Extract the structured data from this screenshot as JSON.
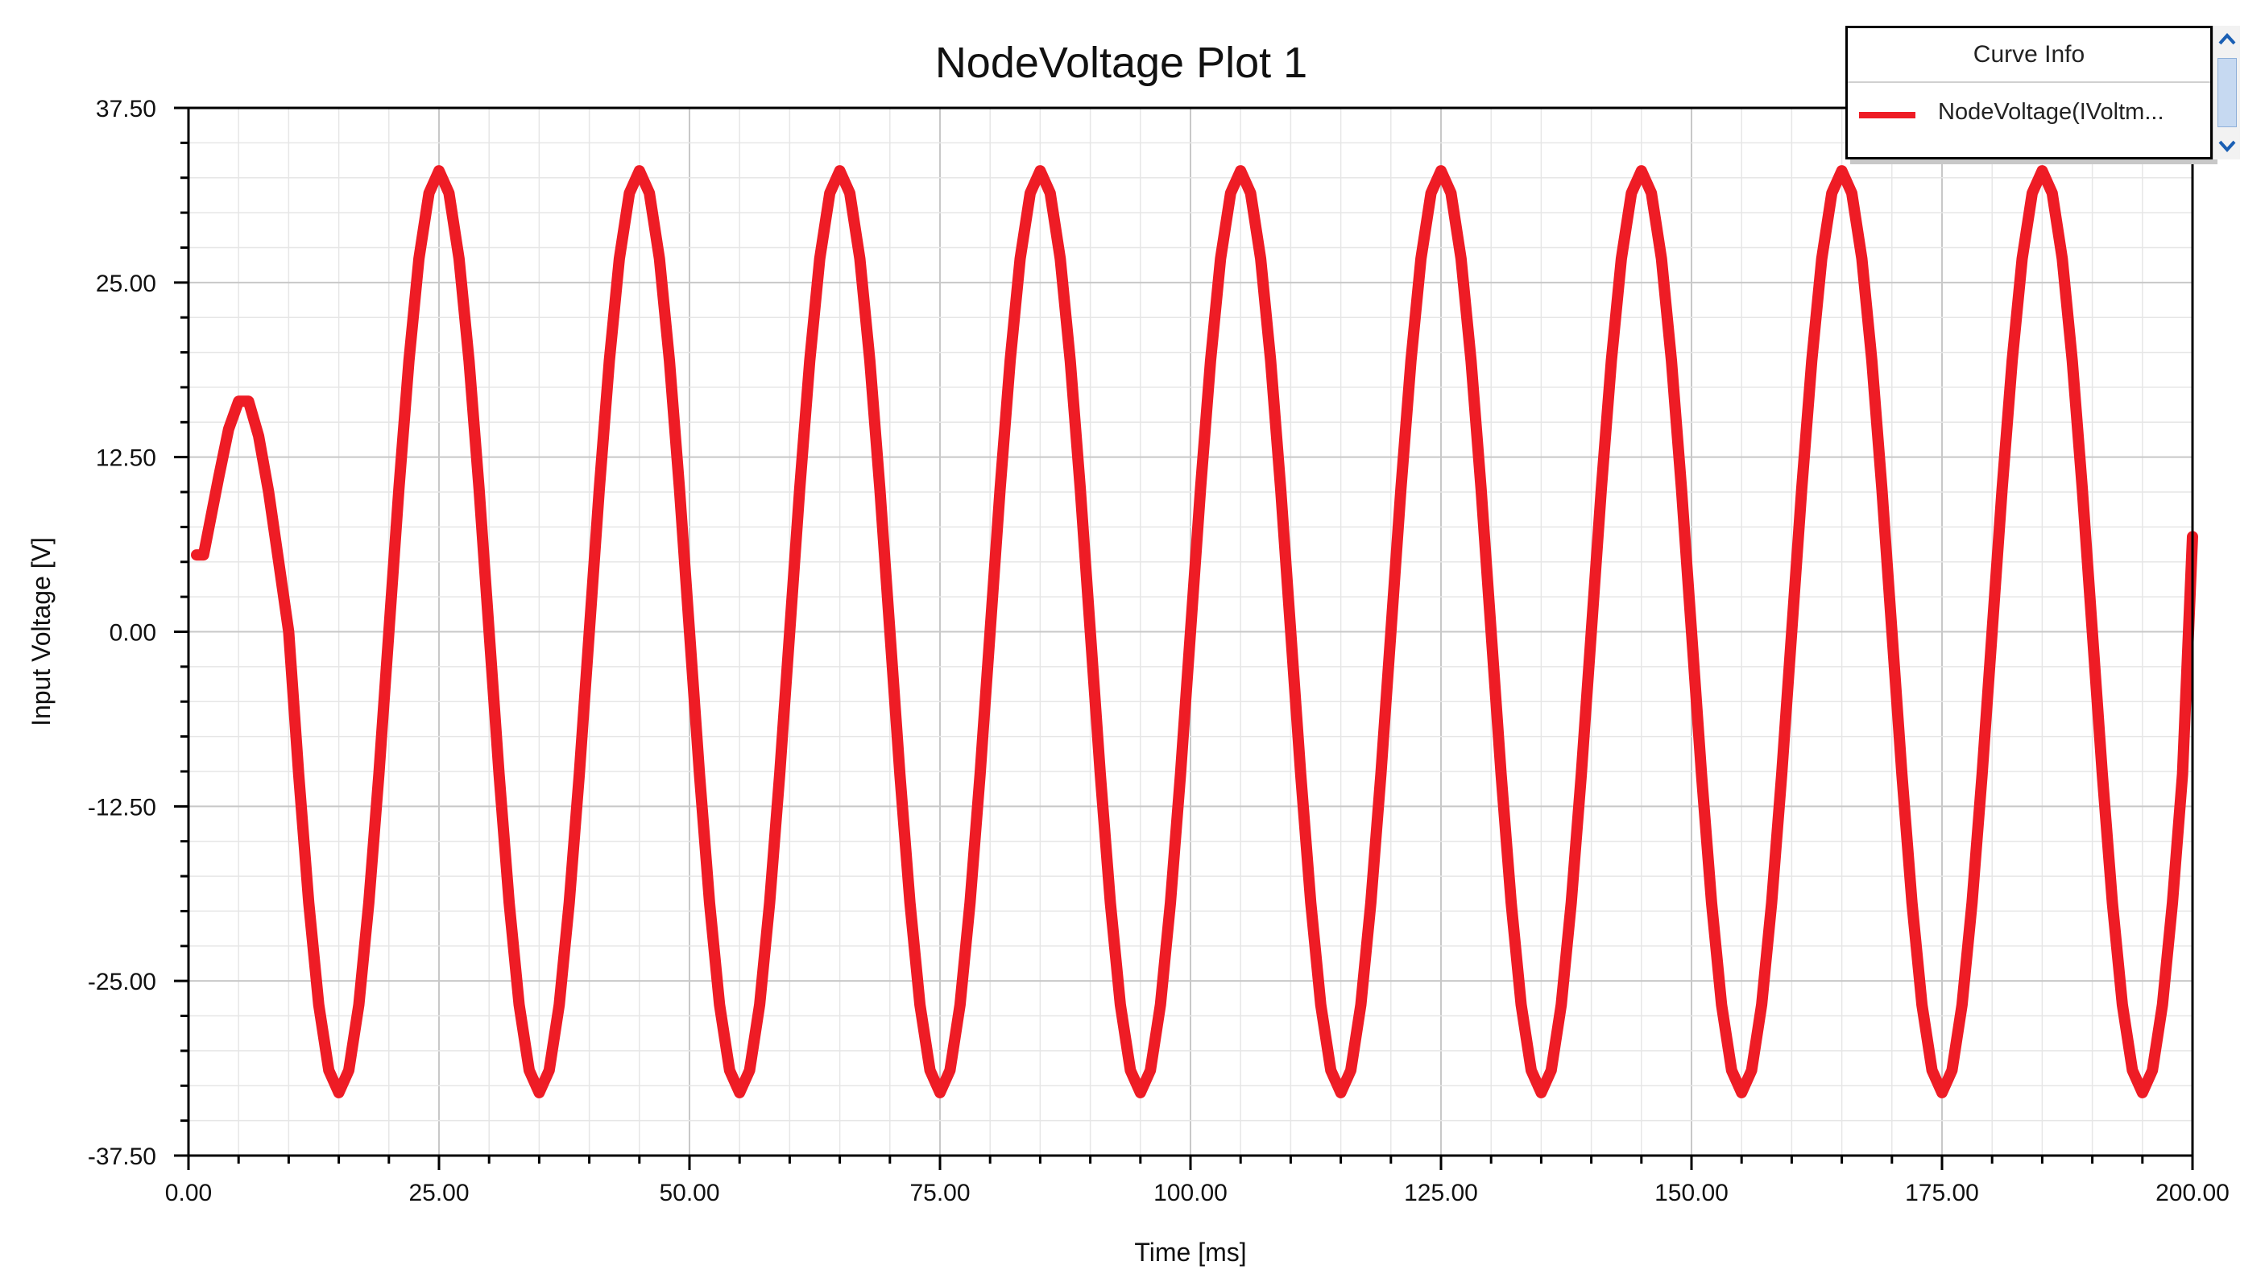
{
  "legend": {
    "header": "Curve Info",
    "items": [
      {
        "label": "NodeVoltage(IVoltm...",
        "color": "#ee1c25"
      }
    ],
    "scroll_up_icon": "chevron-up-icon",
    "scroll_down_icon": "chevron-down-icon"
  },
  "chart_data": {
    "type": "line",
    "title": "NodeVoltage Plot 1",
    "xlabel": "Time [ms]",
    "ylabel": "Input Voltage [V]",
    "xlim": [
      0,
      200
    ],
    "ylim": [
      -37.5,
      37.5
    ],
    "x_ticks": [
      "0.00",
      "25.00",
      "50.00",
      "75.00",
      "100.00",
      "125.00",
      "150.00",
      "175.00",
      "200.00"
    ],
    "y_ticks": [
      "37.50",
      "25.00",
      "12.50",
      "0.00",
      "-12.50",
      "-25.00",
      "-37.50"
    ],
    "grid": true,
    "legend_position": "top-right",
    "series": [
      {
        "name": "NodeVoltage(IVoltm...",
        "color": "#ee1c25",
        "x": [
          0.8,
          1.5,
          3,
          4,
          5,
          6,
          7,
          8,
          9,
          10,
          11,
          12,
          13,
          14,
          15,
          16,
          17,
          18,
          19,
          20,
          21,
          22,
          23,
          24,
          25,
          26,
          27,
          28,
          29,
          30,
          31,
          32,
          33,
          34,
          35,
          36,
          37,
          38,
          39,
          40,
          41,
          42,
          43,
          44,
          45,
          46,
          47,
          48,
          49,
          50,
          51,
          52,
          53,
          54,
          55,
          56,
          57,
          58,
          59,
          60,
          61,
          62,
          63,
          64,
          65,
          66,
          67,
          68,
          69,
          70,
          71,
          72,
          73,
          74,
          75,
          76,
          77,
          78,
          79,
          80,
          81,
          82,
          83,
          84,
          85,
          86,
          87,
          88,
          89,
          90,
          91,
          92,
          93,
          94,
          95,
          96,
          97,
          98,
          99,
          100,
          101,
          102,
          103,
          104,
          105,
          106,
          107,
          108,
          109,
          110,
          111,
          112,
          113,
          114,
          115,
          116,
          117,
          118,
          119,
          120,
          121,
          122,
          123,
          124,
          125,
          126,
          127,
          128,
          129,
          130,
          131,
          132,
          133,
          134,
          135,
          136,
          137,
          138,
          139,
          140,
          141,
          142,
          143,
          144,
          145,
          146,
          147,
          148,
          149,
          150,
          151,
          152,
          153,
          154,
          155,
          156,
          157,
          158,
          159,
          160,
          161,
          162,
          163,
          164,
          165,
          166,
          167,
          168,
          169,
          170,
          171,
          172,
          173,
          174,
          175,
          176,
          177,
          178,
          179,
          180,
          181,
          182,
          183,
          184,
          185,
          186,
          187,
          188,
          189,
          190,
          191,
          192,
          193,
          194,
          195,
          196,
          197,
          198,
          199,
          200
        ],
        "y": [
          5.5,
          5.5,
          11.0,
          14.5,
          16.5,
          16.5,
          14.0,
          10.0,
          5.0,
          0.0,
          -10.2,
          -19.4,
          -26.7,
          -31.4,
          -33.0,
          -31.4,
          -26.7,
          -19.4,
          -10.2,
          0.0,
          10.2,
          19.4,
          26.7,
          31.4,
          33.0,
          31.4,
          26.7,
          19.4,
          10.2,
          0.0,
          -10.2,
          -19.4,
          -26.7,
          -31.4,
          -33.0,
          -31.4,
          -26.7,
          -19.4,
          -10.2,
          0.0,
          10.2,
          19.4,
          26.7,
          31.4,
          33.0,
          31.4,
          26.7,
          19.4,
          10.2,
          0.0,
          -10.2,
          -19.4,
          -26.7,
          -31.4,
          -33.0,
          -31.4,
          -26.7,
          -19.4,
          -10.2,
          0.0,
          10.2,
          19.4,
          26.7,
          31.4,
          33.0,
          31.4,
          26.7,
          19.4,
          10.2,
          0.0,
          -10.2,
          -19.4,
          -26.7,
          -31.4,
          -33.0,
          -31.4,
          -26.7,
          -19.4,
          -10.2,
          0.0,
          10.2,
          19.4,
          26.7,
          31.4,
          33.0,
          31.4,
          26.7,
          19.4,
          10.2,
          0.0,
          -10.2,
          -19.4,
          -26.7,
          -31.4,
          -33.0,
          -31.4,
          -26.7,
          -19.4,
          -10.2,
          0.0,
          10.2,
          19.4,
          26.7,
          31.4,
          33.0,
          31.4,
          26.7,
          19.4,
          10.2,
          0.0,
          -10.2,
          -19.4,
          -26.7,
          -31.4,
          -33.0,
          -31.4,
          -26.7,
          -19.4,
          -10.2,
          0.0,
          10.2,
          19.4,
          26.7,
          31.4,
          33.0,
          31.4,
          26.7,
          19.4,
          10.2,
          0.0,
          -10.2,
          -19.4,
          -26.7,
          -31.4,
          -33.0,
          -31.4,
          -26.7,
          -19.4,
          -10.2,
          0.0,
          10.2,
          19.4,
          26.7,
          31.4,
          33.0,
          31.4,
          26.7,
          19.4,
          10.2,
          0.0,
          -10.2,
          -19.4,
          -26.7,
          -31.4,
          -33.0,
          -31.4,
          -26.7,
          -19.4,
          -10.2,
          0.0,
          10.2,
          19.4,
          26.7,
          31.4,
          33.0,
          31.4,
          26.7,
          19.4,
          10.2,
          0.0,
          -10.2,
          -19.4,
          -26.7,
          -31.4,
          -33.0,
          -31.4,
          -26.7,
          -19.4,
          -10.2,
          0.0,
          10.2,
          19.4,
          26.7,
          31.4,
          33.0,
          31.4,
          26.7,
          19.4,
          10.2,
          0.0,
          -10.2,
          -19.4,
          -26.7,
          -31.4,
          -33.0,
          -31.4,
          -26.7,
          -19.4,
          -10.2,
          6.8
        ]
      }
    ]
  }
}
